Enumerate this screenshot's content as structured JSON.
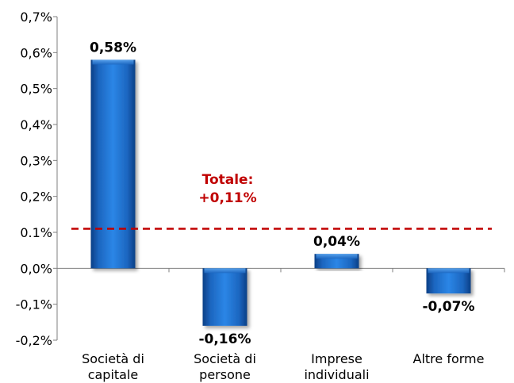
{
  "chart_data": {
    "type": "bar",
    "categories": [
      [
        "Società di",
        "capitale"
      ],
      [
        "Società di",
        "persone"
      ],
      [
        "Imprese",
        "individuali"
      ],
      [
        "Altre forme"
      ]
    ],
    "values": [
      0.58,
      -0.16,
      0.04,
      -0.07
    ],
    "data_labels": [
      "0,58%",
      "-0,16%",
      "0,04%",
      "-0,07%"
    ],
    "ylim": [
      -0.2,
      0.7
    ],
    "yticks": [
      {
        "value": 0.7,
        "label": "0,7%"
      },
      {
        "value": 0.6,
        "label": "0,6%"
      },
      {
        "value": 0.5,
        "label": "0,5%"
      },
      {
        "value": 0.4,
        "label": "0,4%"
      },
      {
        "value": 0.3,
        "label": "0,3%"
      },
      {
        "value": 0.2,
        "label": "0,2%"
      },
      {
        "value": 0.1,
        "label": "0.1%"
      },
      {
        "value": 0.0,
        "label": "0,0%"
      },
      {
        "value": -0.1,
        "label": "-0,1%"
      },
      {
        "value": -0.2,
        "label": "-0,2%"
      }
    ],
    "reference_line": {
      "value": 0.11,
      "label_lines": [
        "Totale:",
        "+0,11%"
      ],
      "color": "#c00000"
    },
    "bar_color": "#1f6fc5",
    "grid": false,
    "title": "",
    "xlabel": "",
    "ylabel": ""
  }
}
